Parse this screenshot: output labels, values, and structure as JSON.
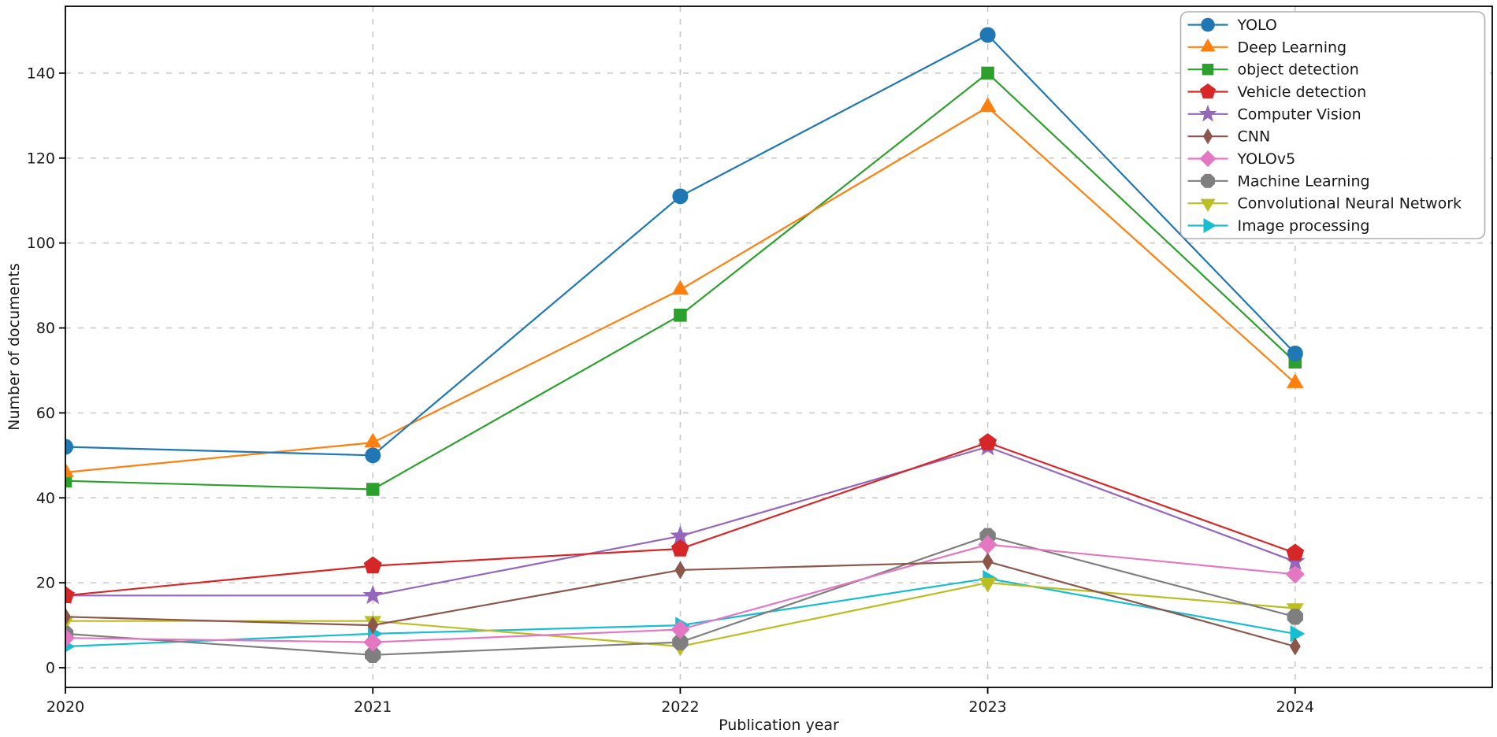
{
  "chart_data": {
    "type": "line",
    "title": "",
    "xlabel": "Publication year",
    "ylabel": "Number of documents",
    "x": [
      2020,
      2021,
      2022,
      2023,
      2024
    ],
    "x_tick_labels": [
      "2020",
      "2021",
      "2022",
      "2023",
      "2024"
    ],
    "y_ticks": [
      0,
      20,
      40,
      60,
      80,
      100,
      120,
      140
    ],
    "xlim": [
      2020,
      2024.64
    ],
    "ylim": [
      -4.7,
      156.4
    ],
    "grid": true,
    "grid_style": "dashed",
    "legend_position": "upper-right",
    "series": [
      {
        "name": "YOLO",
        "color": "#1f77b4",
        "marker": "circle",
        "values": [
          52,
          50,
          111,
          149,
          74
        ]
      },
      {
        "name": "Deep Learning",
        "color": "#ff7f0e",
        "marker": "triangle-up",
        "values": [
          46,
          53,
          89,
          132,
          67
        ]
      },
      {
        "name": "object detection",
        "color": "#2ca02c",
        "marker": "square",
        "values": [
          44,
          42,
          83,
          140,
          72
        ]
      },
      {
        "name": "Vehicle detection",
        "color": "#d62728",
        "marker": "pentagon",
        "values": [
          17,
          24,
          28,
          53,
          27
        ]
      },
      {
        "name": "Computer Vision",
        "color": "#9467bd",
        "marker": "star",
        "values": [
          17,
          17,
          31,
          52,
          25
        ]
      },
      {
        "name": "CNN",
        "color": "#8c564b",
        "marker": "thin-diamond",
        "values": [
          12,
          10,
          23,
          25,
          5
        ]
      },
      {
        "name": "YOLOv5",
        "color": "#e377c2",
        "marker": "diamond",
        "values": [
          7,
          6,
          9,
          29,
          22
        ]
      },
      {
        "name": "Machine Learning",
        "color": "#7f7f7f",
        "marker": "octagon",
        "values": [
          8,
          3,
          6,
          31,
          12
        ]
      },
      {
        "name": "Convolutional Neural Network",
        "color": "#bcbd22",
        "marker": "triangle-down",
        "values": [
          11,
          11,
          5,
          20,
          14
        ]
      },
      {
        "name": "Image processing",
        "color": "#17becf",
        "marker": "triangle-right",
        "values": [
          5,
          8,
          10,
          21,
          8
        ]
      }
    ],
    "colors": {
      "grid": "#c6c6c6",
      "frame": "#000000",
      "text": "#1a1a1a",
      "legend_border": "#b0b0b0",
      "background": "#ffffff"
    }
  }
}
